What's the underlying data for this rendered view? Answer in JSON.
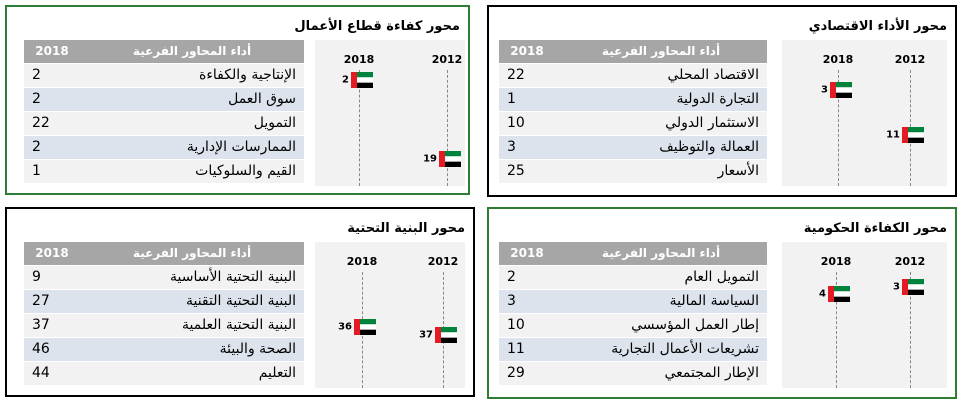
{
  "panels": [
    {
      "title": "محور كفاءة قطاع الأعمال",
      "table": {
        "header": [
          "2018",
          "أداء المحاور الفرعية"
        ],
        "rows": [
          [
            "الإنتاجية والكفاءة",
            2
          ],
          [
            "سوق العمل",
            2
          ],
          [
            "التمويل",
            22
          ],
          [
            "الممارسات الإدارية",
            2
          ],
          [
            "القيم والسلوكيات",
            1
          ]
        ]
      },
      "ranks": {
        "labels": [
          "2018",
          "2012"
        ],
        "values": [
          2,
          19
        ]
      }
    },
    {
      "title": "محور الأداء الاقتصادي",
      "table": {
        "header": [
          "2018",
          "أداء المحاور الفرعية"
        ],
        "rows": [
          [
            "الاقتصاد المحلي",
            22
          ],
          [
            "التجارة الدولية",
            1
          ],
          [
            "الاستثمار الدولي",
            10
          ],
          [
            "العمالة والتوظيف",
            3
          ],
          [
            "الأسعار",
            25
          ]
        ]
      },
      "ranks": {
        "labels": [
          "2018",
          "2012"
        ],
        "values": [
          3,
          11
        ]
      }
    },
    {
      "title": "محور البنية التحتية",
      "table": {
        "header": [
          "2018",
          "أداء المحاور الفرعية"
        ],
        "rows": [
          [
            "البنية التحتية الأساسية",
            9
          ],
          [
            "البنية التحتية التقنية",
            27
          ],
          [
            "البنية التحتية العلمية",
            37
          ],
          [
            "الصحة والبيئة",
            46
          ],
          [
            "التعليم",
            44
          ]
        ]
      },
      "ranks": {
        "labels": [
          "2018",
          "2012"
        ],
        "values": [
          36,
          37
        ]
      }
    },
    {
      "title": "محور الكفاءة الحكومية",
      "table": {
        "header": [
          "2018",
          "أداء المحاور الفرعية"
        ],
        "rows": [
          [
            "التمويل العام",
            2
          ],
          [
            "السياسة المالية",
            3
          ],
          [
            "إطار العمل المؤسسي",
            10
          ],
          [
            "تشريعات الأعمال التجارية",
            11
          ],
          [
            "الإطار المجتمعي",
            29
          ]
        ]
      },
      "ranks": {
        "labels": [
          "2018",
          "2012"
        ],
        "values": [
          4,
          3
        ]
      }
    }
  ]
}
